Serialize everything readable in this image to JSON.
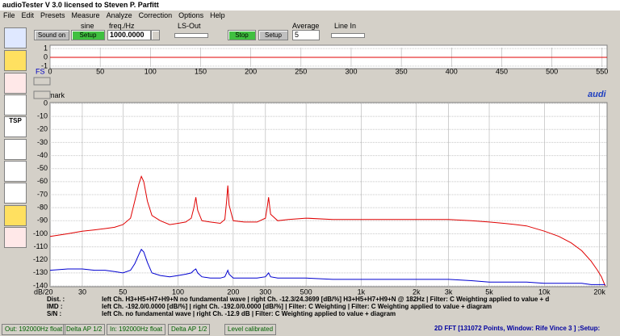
{
  "window": {
    "title": "audioTester  V 3.0   licensed to Steven P. Parfitt"
  },
  "menu": [
    "File",
    "Edit",
    "Presets",
    "Measure",
    "Analyze",
    "Correction",
    "Options",
    "Help"
  ],
  "toolbar": {
    "signal_label": "sine",
    "sound_button": "Sound on",
    "setup_button": "Setup",
    "freq_label": "freq./Hz",
    "freq_value": "1000.0000",
    "ls_out_label": "LS-Out",
    "stop_button": "Stop",
    "setup_button_2": "Setup",
    "average_label": "Average",
    "average_value": "5",
    "line_in_label": "Line In"
  },
  "side_icon_text": "TSP",
  "fs_label": "FS",
  "remark": "remark",
  "brand": "audi",
  "corner_label": "dB/20",
  "chart_data": [
    {
      "type": "line",
      "x": [
        0,
        555
      ],
      "series": [
        {
          "color": "#e00000",
          "values": [
            0,
            0
          ]
        }
      ],
      "xlim": [
        0,
        555
      ],
      "ylim": [
        -1.1,
        1.1
      ],
      "xticks": [
        0,
        50,
        100,
        150,
        200,
        250,
        300,
        350,
        400,
        450,
        500,
        550
      ],
      "yticks": [
        1,
        0,
        -1
      ],
      "log_x": false,
      "grid": true
    },
    {
      "type": "line",
      "x": [
        20,
        25,
        30,
        35,
        40,
        45,
        50,
        55,
        58,
        61,
        63,
        65,
        68,
        72,
        80,
        90,
        100,
        110,
        118,
        122,
        125,
        128,
        135,
        150,
        170,
        180,
        184,
        187,
        190,
        200,
        230,
        270,
        300,
        308,
        312,
        320,
        350,
        400,
        500,
        700,
        1000,
        1500,
        2000,
        3000,
        4000,
        5000,
        6000,
        7000,
        8000,
        10000,
        12000,
        14000,
        16000,
        18000,
        19500,
        20500,
        21500
      ],
      "series": [
        {
          "color": "#e00000",
          "values": [
            -102,
            -100,
            -98,
            -97,
            -96,
            -95,
            -93,
            -88,
            -75,
            -62,
            -56,
            -60,
            -75,
            -86,
            -90,
            -93,
            -92,
            -91,
            -88,
            -80,
            -72,
            -82,
            -90,
            -91,
            -92,
            -89,
            -75,
            -63,
            -78,
            -90,
            -91,
            -91,
            -88,
            -78,
            -72,
            -85,
            -90,
            -89,
            -88,
            -89,
            -89,
            -89,
            -89,
            -89,
            -90,
            -91,
            -92,
            -93,
            -94,
            -98,
            -102,
            -107,
            -113,
            -121,
            -128,
            -133,
            -140
          ]
        },
        {
          "color": "#0000d0",
          "values": [
            -128,
            -127,
            -127,
            -128,
            -128,
            -129,
            -130,
            -128,
            -123,
            -116,
            -112,
            -114,
            -122,
            -130,
            -132,
            -133,
            -132,
            -131,
            -130,
            -128,
            -127,
            -130,
            -133,
            -134,
            -134,
            -133,
            -130,
            -128,
            -131,
            -134,
            -134,
            -134,
            -133,
            -131,
            -130,
            -133,
            -134,
            -134,
            -134,
            -135,
            -135,
            -135,
            -135,
            -135,
            -136,
            -137,
            -137,
            -137,
            -137,
            -138,
            -138,
            -138,
            -138,
            -139,
            -139,
            -139,
            -139
          ]
        }
      ],
      "xlim": [
        20,
        22000
      ],
      "ylim": [
        -140,
        0
      ],
      "log_x": true,
      "grid": true,
      "yticks": [
        0,
        -10,
        -20,
        -30,
        -40,
        -50,
        -60,
        -70,
        -80,
        -90,
        -100,
        -110,
        -120,
        -130,
        -140
      ],
      "xticks": [
        30,
        50,
        100,
        200,
        300,
        500,
        {
          "value": 1000,
          "label": "1k"
        },
        {
          "value": 2000,
          "label": "2k"
        },
        {
          "value": 3000,
          "label": "3k"
        },
        {
          "value": 5000,
          "label": "5k"
        },
        {
          "value": 10000,
          "label": "10k"
        },
        {
          "value": 20000,
          "label": "20k"
        }
      ]
    }
  ],
  "info": [
    {
      "label": "Dist. :",
      "text": "left Ch. H3+H5+H7+H9+N  no fundamental wave  |  right Ch. -12.3/24.3699 [dB/%] H3+H5+H7+H9+N @ 182Hz  |  Filter: C Weighting applied to value + d"
    },
    {
      "label": "IMD :",
      "text": "left Ch. -192.0/0.0000 [dB/%]  |  right Ch. -192.0/0.0000 [dB/%]  |  Filter: C Weighting  |  Filter: C Weighting applied to value + diagram"
    },
    {
      "label": "S/N :",
      "text": "left Ch.  no fundamental wave  |  right Ch.  -12.9 dB   |  Filter: C Weighting applied to value + diagram"
    }
  ],
  "status": [
    "Out: 192000Hz float",
    "Delta AP 1/2",
    "In: 192000Hz float",
    "Delta AP 1/2",
    "Level calibrated",
    "2D FFT [131072 Points, Window: Rife Vince 3 ] ;Setup:"
  ]
}
